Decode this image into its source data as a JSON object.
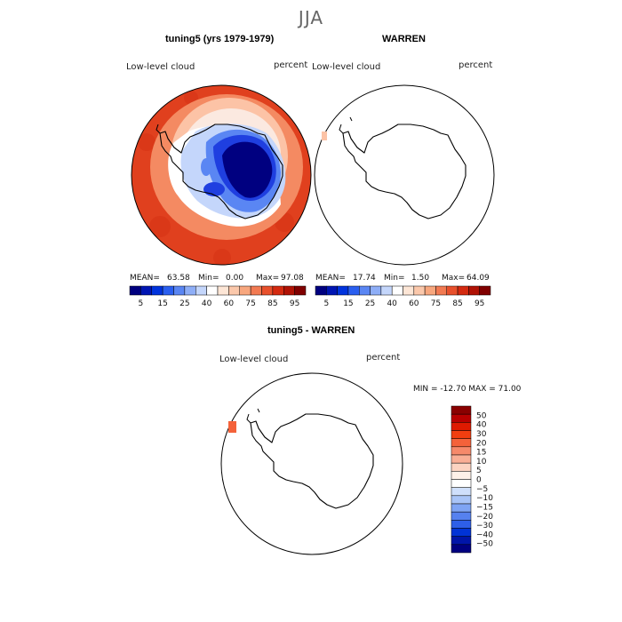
{
  "title": "JJA",
  "panels": [
    {
      "title": "tuning5 (yrs 1979-1979)",
      "variable": "Low-level cloud",
      "units": "percent",
      "stats": {
        "mean_label": "MEAN=",
        "mean": "63.58",
        "min_label": "Min=",
        "min": "0.00",
        "max_label": "Max=",
        "max": "97.08"
      }
    },
    {
      "title": "WARREN",
      "variable": "Low-level cloud",
      "units": "percent",
      "stats": {
        "mean_label": "MEAN=",
        "mean": "17.74",
        "min_label": "Min=",
        "min": "1.50",
        "max_label": "Max=",
        "max": "64.09"
      }
    },
    {
      "title": "tuning5 - WARREN",
      "variable": "Low-level cloud",
      "units": "percent",
      "minmax": "MIN = -12.70 MAX =  71.00"
    }
  ],
  "colorbar_top": {
    "colors": [
      "#000080",
      "#0015b3",
      "#0033dd",
      "#2a5ff0",
      "#5a86f3",
      "#8eaef7",
      "#c4d6fb",
      "#ffffff",
      "#fde6d6",
      "#fbc8ab",
      "#f8a77e",
      "#f27a52",
      "#e8502c",
      "#d42a10",
      "#b01205",
      "#800000"
    ],
    "labels": [
      "5",
      "15",
      "25",
      "40",
      "60",
      "75",
      "85",
      "95"
    ]
  },
  "colorbar_diff": {
    "colors_top_to_bottom": [
      "#8a0000",
      "#b80000",
      "#de1a00",
      "#f03e10",
      "#f4623a",
      "#f6896a",
      "#f9ae95",
      "#fcd3c1",
      "#fdf0e8",
      "#ffffff",
      "#cfdffb",
      "#a9c4f7",
      "#7fa4f4",
      "#5681ef",
      "#2e5fe8",
      "#0033d6",
      "#0015a8",
      "#000080"
    ],
    "labels_top_to_bottom": [
      "50",
      "40",
      "30",
      "20",
      "15",
      "10",
      "5",
      "0",
      "−5",
      "−10",
      "−15",
      "−20",
      "−30",
      "−40",
      "−50"
    ]
  },
  "map_colors": {
    "high": "#e0401e",
    "high_alt": "#d63215",
    "mid": "#f48a62",
    "mid_light": "#fcc3a6",
    "near_zero": "#fbe9e0",
    "white": "#ffffff",
    "light_blue": "#c4d6fb",
    "mid_blue": "#5a86f3",
    "blue": "#1f3fe0",
    "dark_blue": "#000080",
    "coast": "#000000"
  }
}
